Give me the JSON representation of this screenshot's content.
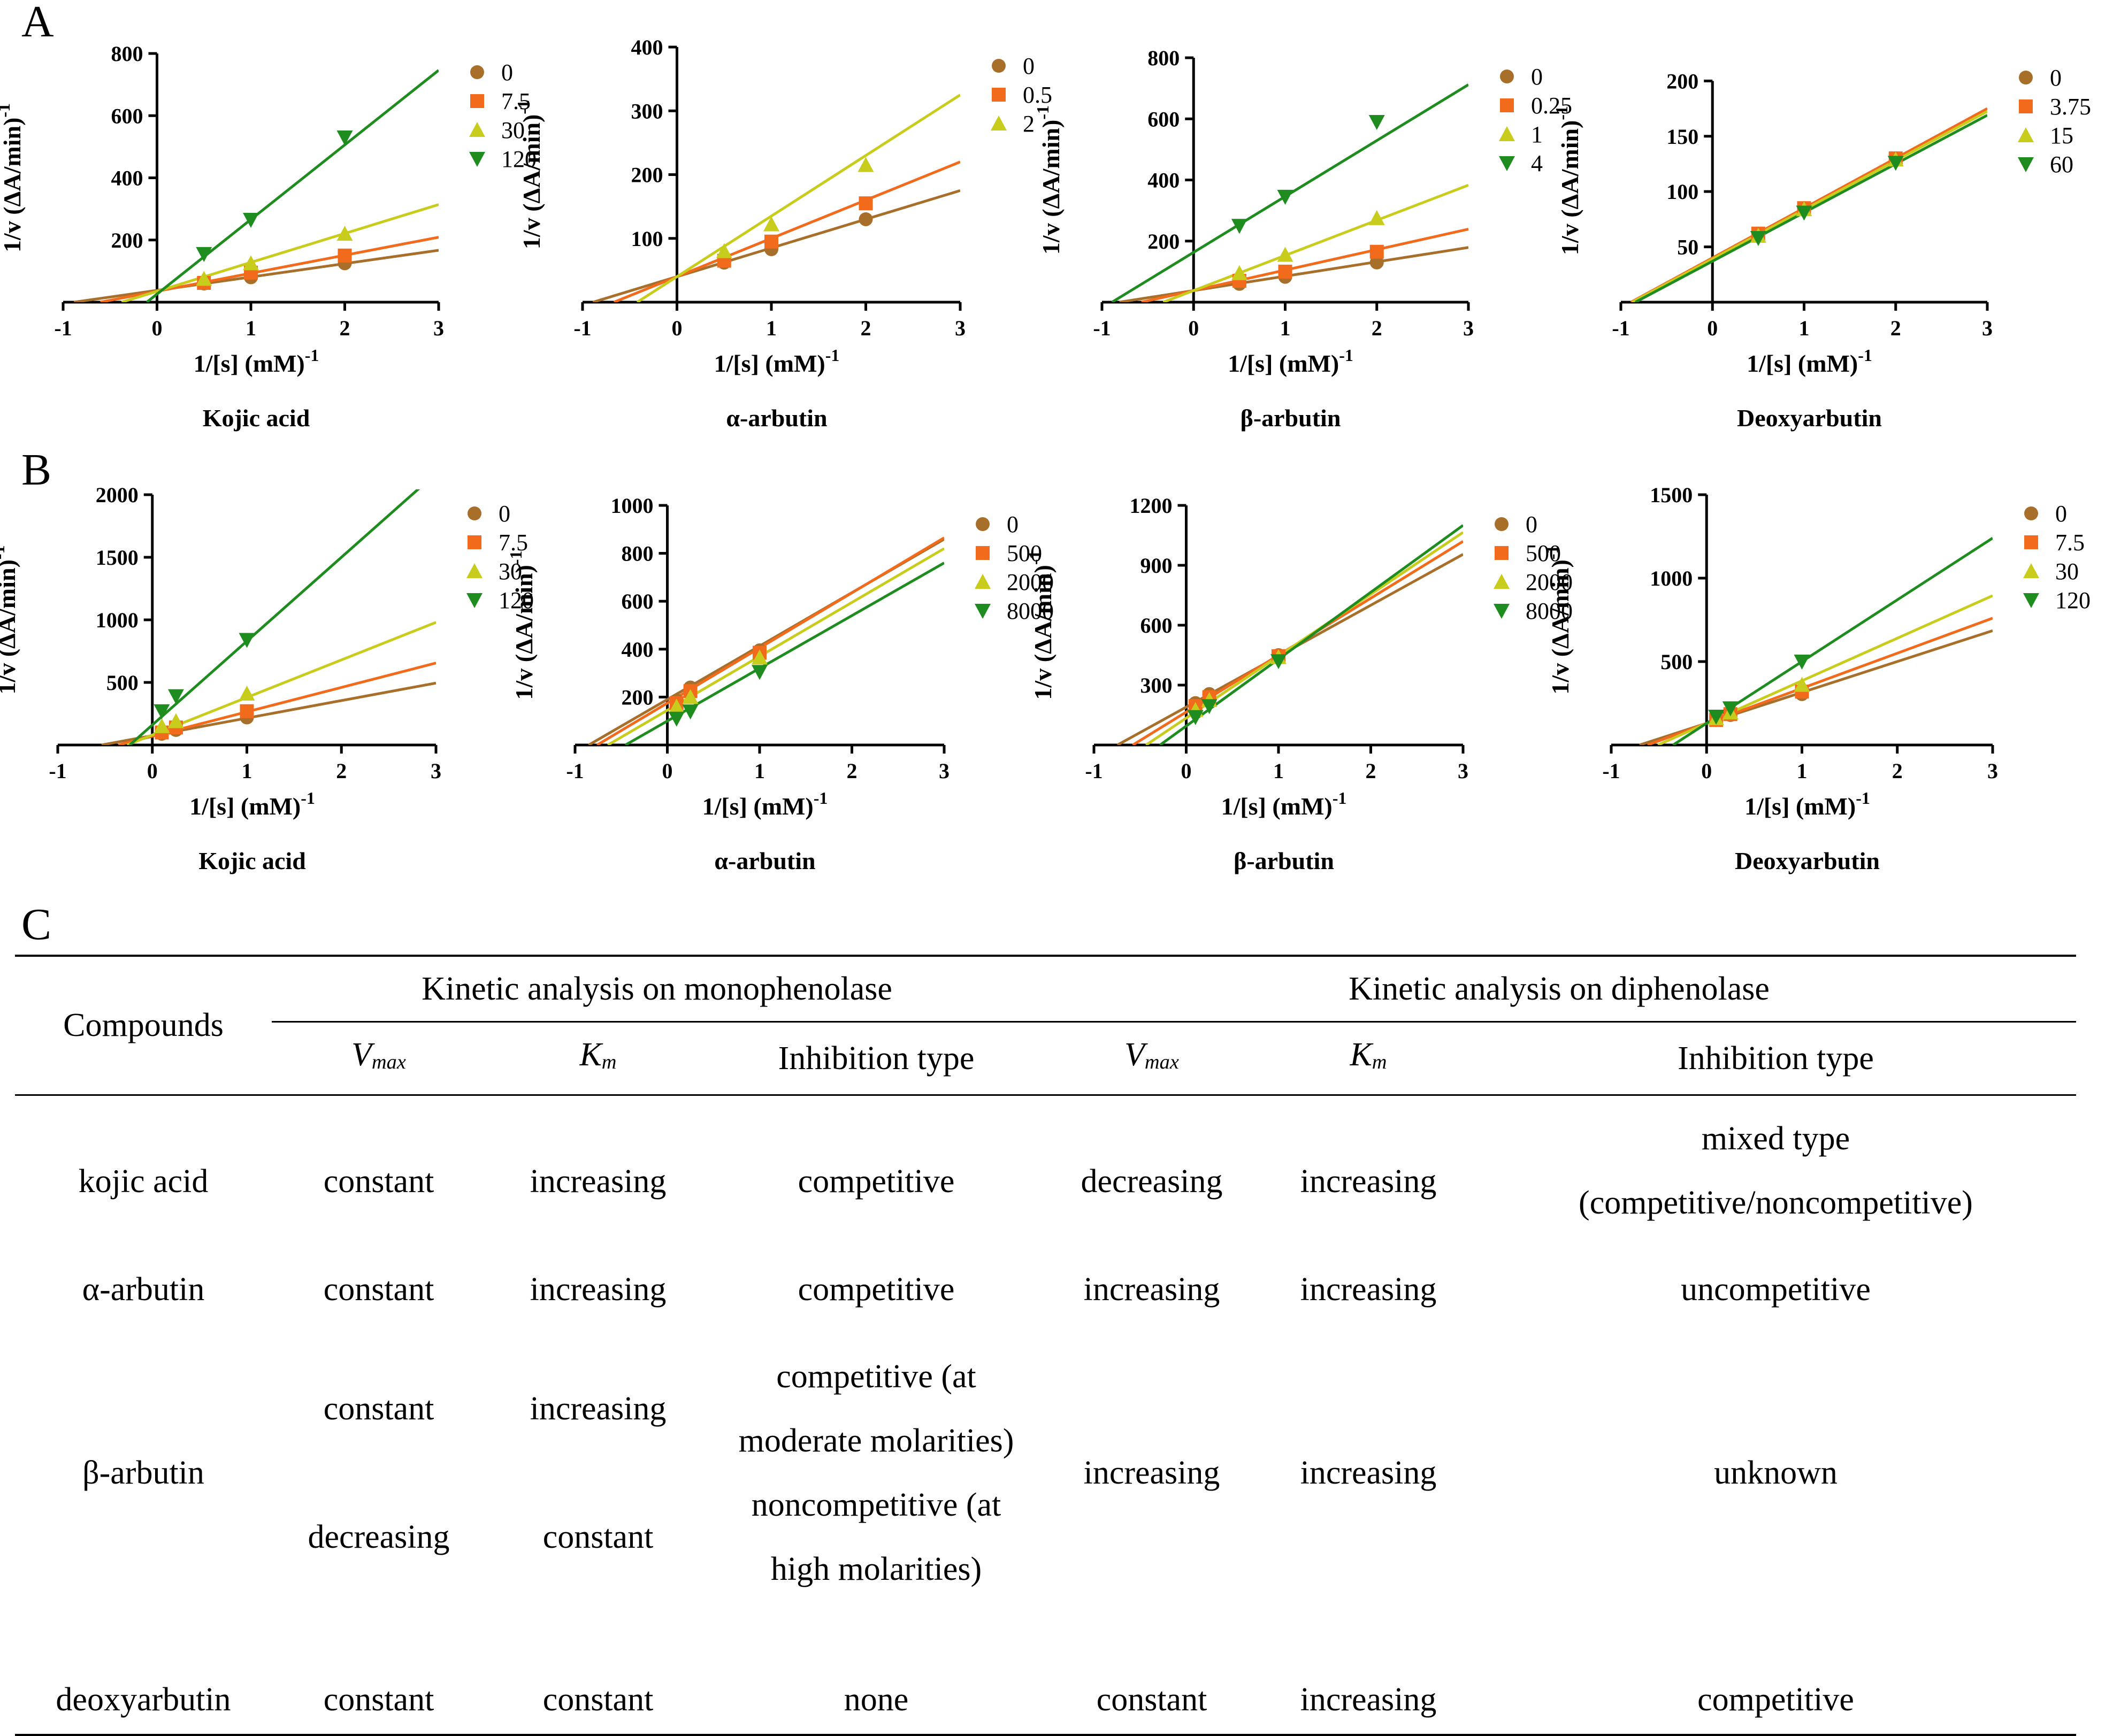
{
  "panel_labels": {
    "a": "A",
    "b": "B",
    "c": "C"
  },
  "colors": {
    "s0": "#a86f2a",
    "s1": "#f26a1b",
    "s2": "#c8cc1c",
    "s3": "#1e8c1e"
  },
  "chart_data": [
    {
      "id": "A1",
      "type": "scatter",
      "title": "Kojic acid",
      "xlabel": "1/[s] (mM)",
      "xlabel_sup": "-1",
      "ylabel": "1/v (ΔA/min)",
      "ylabel_sup": "-1",
      "xlim": [
        -1,
        3
      ],
      "ylim": [
        0,
        800
      ],
      "xticks": [
        -1,
        0,
        1,
        2,
        3
      ],
      "yticks": [
        200,
        400,
        600,
        800
      ],
      "series": [
        {
          "name": "0",
          "marker": "circle",
          "x": [
            0.5,
            1,
            2
          ],
          "y": [
            60,
            80,
            125
          ],
          "fit": {
            "slope": 43,
            "intercept": 38
          }
        },
        {
          "name": "7.5",
          "marker": "square",
          "x": [
            0.5,
            1,
            2
          ],
          "y": [
            62,
            95,
            150
          ],
          "fit": {
            "slope": 58,
            "intercept": 35
          }
        },
        {
          "name": "30",
          "marker": "triangle-up",
          "x": [
            0.5,
            1,
            2
          ],
          "y": [
            75,
            125,
            220
          ],
          "fit": {
            "slope": 93,
            "intercept": 35
          }
        },
        {
          "name": "120",
          "marker": "triangle-down",
          "x": [
            0.5,
            1,
            2
          ],
          "y": [
            155,
            265,
            530
          ],
          "fit": {
            "slope": 240,
            "intercept": 26
          }
        }
      ]
    },
    {
      "id": "A2",
      "type": "scatter",
      "title": "α-arbutin",
      "xlabel": "1/[s] (mM)",
      "xlabel_sup": "-1",
      "ylabel": "1/v (ΔA/min)",
      "ylabel_sup": "-1",
      "xlim": [
        -1,
        3
      ],
      "ylim": [
        0,
        400
      ],
      "xticks": [
        -1,
        0,
        1,
        2,
        3
      ],
      "yticks": [
        100,
        200,
        300,
        400
      ],
      "series": [
        {
          "name": "0",
          "marker": "circle",
          "x": [
            0.5,
            1,
            2
          ],
          "y": [
            62,
            83,
            130
          ],
          "fit": {
            "slope": 45,
            "intercept": 40
          }
        },
        {
          "name": "0.5",
          "marker": "square",
          "x": [
            0.5,
            1,
            2
          ],
          "y": [
            65,
            95,
            155
          ],
          "fit": {
            "slope": 60,
            "intercept": 40
          }
        },
        {
          "name": "2",
          "marker": "triangle-up",
          "x": [
            0.5,
            1,
            2
          ],
          "y": [
            80,
            122,
            215
          ],
          "fit": {
            "slope": 95,
            "intercept": 40
          }
        }
      ]
    },
    {
      "id": "A3",
      "type": "scatter",
      "title": "β-arbutin",
      "xlabel": "1/[s] (mM)",
      "xlabel_sup": "-1",
      "ylabel": "1/v (ΔA/min)",
      "ylabel_sup": "-1",
      "xlim": [
        -1,
        3
      ],
      "ylim": [
        0,
        800
      ],
      "xticks": [
        -1,
        0,
        1,
        2,
        3
      ],
      "yticks": [
        200,
        400,
        600,
        800
      ],
      "series": [
        {
          "name": "0",
          "marker": "circle",
          "x": [
            0.5,
            1,
            2
          ],
          "y": [
            60,
            83,
            130
          ],
          "fit": {
            "slope": 47,
            "intercept": 38
          }
        },
        {
          "name": "0.25",
          "marker": "square",
          "x": [
            0.5,
            1,
            2
          ],
          "y": [
            70,
            100,
            165
          ],
          "fit": {
            "slope": 67,
            "intercept": 38
          }
        },
        {
          "name": "1",
          "marker": "triangle-up",
          "x": [
            0.5,
            1,
            2
          ],
          "y": [
            95,
            155,
            275
          ],
          "fit": {
            "slope": 115,
            "intercept": 38
          }
        },
        {
          "name": "4",
          "marker": "triangle-down",
          "x": [
            0.5,
            1,
            2
          ],
          "y": [
            250,
            345,
            590
          ],
          "fit": {
            "slope": 183,
            "intercept": 163
          }
        }
      ]
    },
    {
      "id": "A4",
      "type": "scatter",
      "title": "Deoxyarbutin",
      "xlabel": "1/[s] (mM)",
      "xlabel_sup": "-1",
      "ylabel": "1/v (ΔA/min)",
      "ylabel_sup": "-1",
      "xlim": [
        -1,
        3
      ],
      "ylim": [
        0,
        220
      ],
      "xticks": [
        -1,
        0,
        1,
        2,
        3
      ],
      "yticks": [
        50,
        100,
        150,
        200
      ],
      "series": [
        {
          "name": "0",
          "marker": "circle",
          "x": [
            0.5,
            1,
            2
          ],
          "y": [
            62,
            85,
            130
          ],
          "fit": {
            "slope": 45,
            "intercept": 40
          }
        },
        {
          "name": "3.75",
          "marker": "square",
          "x": [
            0.5,
            1,
            2
          ],
          "y": [
            62,
            85,
            130
          ],
          "fit": {
            "slope": 45,
            "intercept": 40
          }
        },
        {
          "name": "15",
          "marker": "triangle-up",
          "x": [
            0.5,
            1,
            2
          ],
          "y": [
            60,
            84,
            129
          ],
          "fit": {
            "slope": 44.5,
            "intercept": 39
          }
        },
        {
          "name": "60",
          "marker": "triangle-down",
          "x": [
            0.5,
            1,
            2
          ],
          "y": [
            58,
            81,
            126
          ],
          "fit": {
            "slope": 44,
            "intercept": 37
          }
        }
      ]
    },
    {
      "id": "B1",
      "type": "scatter",
      "title": "Kojic acid",
      "xlabel": "1/[s] (mM)",
      "xlabel_sup": "-1",
      "ylabel": "1/v (ΔA/min)",
      "ylabel_sup": "-1",
      "xlim": [
        -1,
        3
      ],
      "ylim": [
        0,
        2000
      ],
      "xticks": [
        -1,
        0,
        1,
        2,
        3
      ],
      "yticks": [
        500,
        1000,
        1500,
        2000
      ],
      "series": [
        {
          "name": "0",
          "marker": "circle",
          "x": [
            0.1,
            0.25,
            1
          ],
          "y": [
            90,
            120,
            220
          ],
          "fit": {
            "slope": 140,
            "intercept": 75
          }
        },
        {
          "name": "7.5",
          "marker": "square",
          "x": [
            0.1,
            0.25,
            1
          ],
          "y": [
            100,
            140,
            270
          ],
          "fit": {
            "slope": 195,
            "intercept": 70
          }
        },
        {
          "name": "30",
          "marker": "triangle-up",
          "x": [
            0.1,
            0.25,
            1
          ],
          "y": [
            150,
            190,
            410
          ],
          "fit": {
            "slope": 300,
            "intercept": 80
          }
        },
        {
          "name": "120",
          "marker": "triangle-down",
          "x": [
            0.1,
            0.25,
            1
          ],
          "y": [
            270,
            390,
            840
          ],
          "fit": {
            "slope": 670,
            "intercept": 160
          }
        }
      ]
    },
    {
      "id": "B2",
      "type": "scatter",
      "title": "α-arbutin",
      "xlabel": "1/[s] (mM)",
      "xlabel_sup": "-1",
      "ylabel": "1/v (ΔA/min)",
      "ylabel_sup": "-1",
      "xlim": [
        -1,
        3
      ],
      "ylim": [
        0,
        1000
      ],
      "xticks": [
        -1,
        0,
        1,
        2,
        3
      ],
      "yticks": [
        200,
        400,
        600,
        800,
        1000
      ],
      "series": [
        {
          "name": "0",
          "marker": "circle",
          "x": [
            0.1,
            0.25,
            1
          ],
          "y": [
            185,
            240,
            395
          ],
          "fit": {
            "slope": 223,
            "intercept": 190
          }
        },
        {
          "name": "500",
          "marker": "square",
          "x": [
            0.1,
            0.25,
            1
          ],
          "y": [
            175,
            225,
            385
          ],
          "fit": {
            "slope": 230,
            "intercept": 175
          }
        },
        {
          "name": "2000",
          "marker": "triangle-up",
          "x": [
            0.1,
            0.25,
            1
          ],
          "y": [
            160,
            200,
            365
          ],
          "fit": {
            "slope": 225,
            "intercept": 145
          }
        },
        {
          "name": "8000",
          "marker": "triangle-down",
          "x": [
            0.1,
            0.25,
            1
          ],
          "y": [
            110,
            140,
            305
          ],
          "fit": {
            "slope": 220,
            "intercept": 100
          }
        }
      ]
    },
    {
      "id": "B3",
      "type": "scatter",
      "title": "β-arbutin",
      "xlabel": "1/[s] (mM)",
      "xlabel_sup": "-1",
      "ylabel": "1/v (ΔA/min)",
      "ylabel_sup": "-1",
      "xlim": [
        -1,
        3
      ],
      "ylim": [
        0,
        1200
      ],
      "xticks": [
        -1,
        0,
        1,
        2,
        3
      ],
      "yticks": [
        300,
        600,
        900,
        1200
      ],
      "series": [
        {
          "name": "0",
          "marker": "circle",
          "x": [
            0.1,
            0.25,
            1
          ],
          "y": [
            210,
            255,
            450
          ],
          "fit": {
            "slope": 255,
            "intercept": 190
          }
        },
        {
          "name": "500",
          "marker": "square",
          "x": [
            0.1,
            0.25,
            1
          ],
          "y": [
            195,
            240,
            445
          ],
          "fit": {
            "slope": 285,
            "intercept": 165
          }
        },
        {
          "name": "2000",
          "marker": "triangle-up",
          "x": [
            0.1,
            0.25,
            1
          ],
          "y": [
            175,
            225,
            440
          ],
          "fit": {
            "slope": 310,
            "intercept": 135
          }
        },
        {
          "name": "8000",
          "marker": "triangle-down",
          "x": [
            0.1,
            0.25,
            1
          ],
          "y": [
            140,
            195,
            420
          ],
          "fit": {
            "slope": 335,
            "intercept": 95
          }
        }
      ]
    },
    {
      "id": "B4",
      "type": "scatter",
      "title": "Deoxyarbutin",
      "xlabel": "1/[s] (mM)",
      "xlabel_sup": "-1",
      "ylabel": "1/v (ΔA/min)",
      "ylabel_sup": "-1",
      "xlim": [
        -1,
        3
      ],
      "ylim": [
        0,
        1500
      ],
      "xticks": [
        -1,
        0,
        1,
        2,
        3
      ],
      "yticks": [
        500,
        1000,
        1500
      ],
      "series": [
        {
          "name": "0",
          "marker": "circle",
          "x": [
            0.1,
            0.25,
            1
          ],
          "y": [
            150,
            180,
            305
          ],
          "fit": {
            "slope": 185,
            "intercept": 130
          }
        },
        {
          "name": "7.5",
          "marker": "square",
          "x": [
            0.1,
            0.25,
            1
          ],
          "y": [
            150,
            185,
            320
          ],
          "fit": {
            "slope": 210,
            "intercept": 130
          }
        },
        {
          "name": "30",
          "marker": "triangle-up",
          "x": [
            0.1,
            0.25,
            1
          ],
          "y": [
            160,
            195,
            360
          ],
          "fit": {
            "slope": 255,
            "intercept": 130
          }
        },
        {
          "name": "120",
          "marker": "triangle-down",
          "x": [
            0.1,
            0.25,
            1
          ],
          "y": [
            170,
            220,
            500
          ],
          "fit": {
            "slope": 370,
            "intercept": 130
          }
        }
      ]
    }
  ],
  "table": {
    "compounds_header": "Compounds",
    "mono_header": "Kinetic analysis on monophenolase",
    "di_header": "Kinetic analysis on diphenolase",
    "vmax_main": "V",
    "vmax_sub": "max",
    "km_main": "K",
    "km_sub": "m",
    "inhibition_type": "Inhibition type",
    "rows": {
      "kojic": {
        "compound": "kojic acid",
        "mono_vmax": "constant",
        "mono_km": "increasing",
        "mono_type": "competitive",
        "di_vmax": "decreasing",
        "di_km": "increasing",
        "di_type_1": "mixed type",
        "di_type_2": "(competitive/noncompetitive)"
      },
      "alpha": {
        "compound": "α-arbutin",
        "mono_vmax": "constant",
        "mono_km": "increasing",
        "mono_type": "competitive",
        "di_vmax": "increasing",
        "di_km": "increasing",
        "di_type": "uncompetitive"
      },
      "beta": {
        "compound": "β-arbutin",
        "mono_vmax_1": "constant",
        "mono_km_1": "increasing",
        "mono_type_1": "competitive (at",
        "mono_type_2": "moderate molarities)",
        "mono_type_3": "noncompetitive (at",
        "mono_type_4": "high molarities)",
        "mono_vmax_2": "decreasing",
        "mono_km_2": "constant",
        "di_vmax": "increasing",
        "di_km": "increasing",
        "di_type": "unknown"
      },
      "deoxy": {
        "compound": "deoxyarbutin",
        "mono_vmax": "constant",
        "mono_km": "constant",
        "mono_type": "none",
        "di_vmax": "constant",
        "di_km": "increasing",
        "di_type": "competitive"
      }
    }
  }
}
